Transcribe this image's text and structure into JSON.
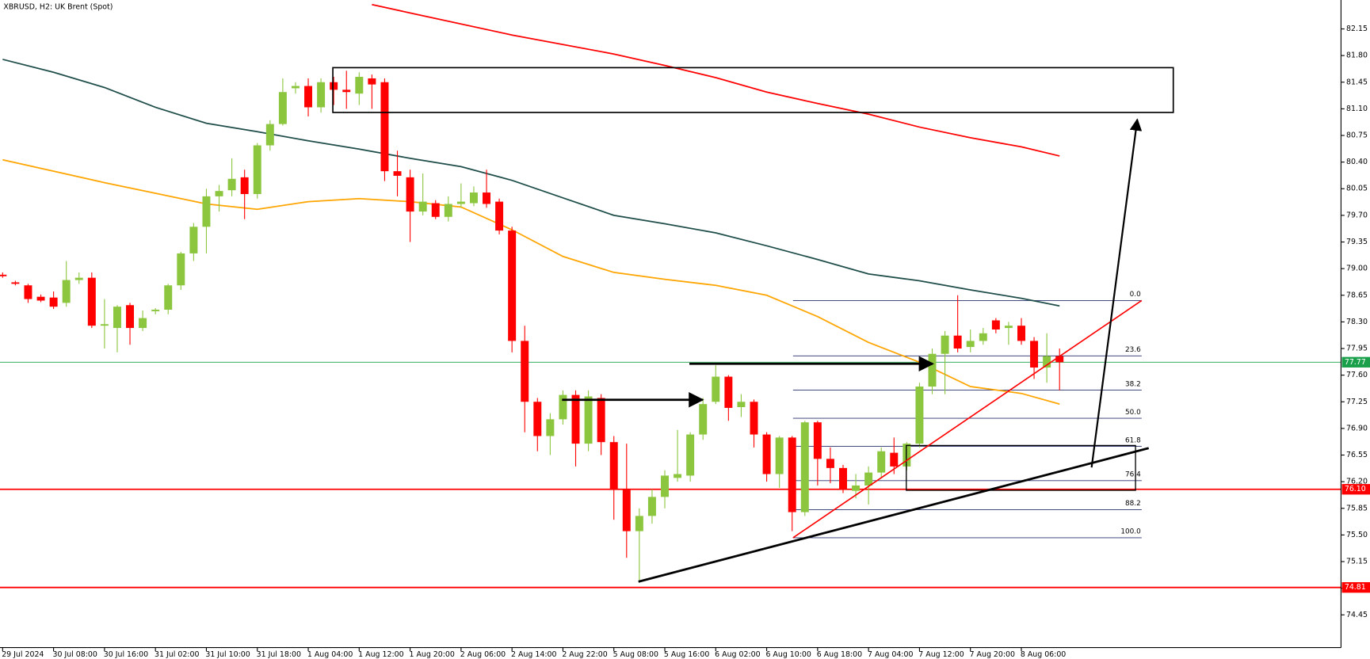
{
  "chart_data": {
    "type": "candlestick",
    "title": "XBRUSD, H2:  UK Brent (Spot)",
    "categories": [
      "29 Jul 2024",
      null,
      null,
      null,
      "30 Jul 08:00",
      null,
      null,
      null,
      "30 Jul 16:00",
      null,
      null,
      null,
      "31 Jul 02:00",
      null,
      null,
      null,
      "31 Jul 10:00",
      null,
      null,
      null,
      "31 Jul 18:00",
      null,
      null,
      null,
      "1 Aug 04:00",
      null,
      null,
      null,
      "1 Aug 12:00",
      null,
      null,
      null,
      "1 Aug 20:00",
      null,
      null,
      null,
      "2 Aug 06:00",
      null,
      null,
      null,
      "2 Aug 14:00",
      null,
      null,
      null,
      "2 Aug 22:00",
      null,
      null,
      null,
      "5 Aug 08:00",
      null,
      null,
      null,
      "5 Aug 16:00",
      null,
      null,
      null,
      "6 Aug 02:00",
      null,
      null,
      null,
      "6 Aug 10:00",
      null,
      null,
      null,
      "6 Aug 18:00",
      null,
      null,
      null,
      "7 Aug 04:00",
      null,
      null,
      null,
      "7 Aug 12:00",
      null,
      null,
      null,
      "7 Aug 20:00",
      null,
      null,
      null,
      "8 Aug 06:00",
      null,
      null,
      null
    ],
    "open": [
      78.92,
      78.82,
      78.78,
      78.63,
      78.62,
      78.55,
      78.85,
      78.88,
      78.25,
      78.22,
      78.52,
      78.22,
      78.44,
      78.46,
      78.78,
      79.2,
      79.55,
      79.95,
      80.03,
      80.2,
      79.98,
      80.62,
      80.9,
      81.37,
      81.4,
      81.12,
      81.45,
      81.35,
      81.3,
      81.5,
      81.45,
      80.28,
      80.2,
      79.75,
      79.86,
      79.68,
      79.85,
      79.86,
      80.0,
      79.88,
      79.5,
      78.05,
      77.25,
      76.8,
      77.02,
      77.34,
      76.7,
      77.3,
      76.72,
      76.1,
      75.55,
      75.75,
      76.0,
      76.25,
      76.28,
      76.82,
      77.25,
      77.58,
      77.18,
      77.25,
      76.82,
      76.3,
      76.78,
      75.8,
      76.98,
      76.5,
      76.38,
      76.08,
      76.15,
      76.32,
      76.58,
      76.4,
      76.7,
      77.45,
      77.88,
      78.12,
      77.97,
      78.05,
      78.32,
      78.22,
      78.25,
      78.05,
      77.7,
      77.85
    ],
    "high": [
      78.95,
      78.84,
      78.8,
      78.66,
      78.7,
      79.1,
      78.95,
      78.95,
      78.6,
      78.52,
      78.55,
      78.45,
      78.48,
      78.8,
      79.22,
      79.6,
      80.05,
      80.1,
      80.45,
      80.3,
      80.65,
      80.95,
      81.5,
      81.45,
      81.5,
      81.5,
      81.52,
      81.6,
      81.58,
      81.55,
      81.5,
      80.55,
      80.3,
      80.25,
      79.9,
      79.95,
      80.12,
      80.08,
      80.3,
      79.92,
      79.55,
      78.25,
      77.3,
      77.1,
      77.4,
      77.4,
      77.4,
      77.35,
      76.8,
      76.7,
      75.85,
      76.1,
      76.35,
      76.88,
      76.85,
      77.3,
      77.73,
      77.6,
      77.35,
      77.28,
      76.85,
      76.8,
      76.8,
      77.0,
      77.0,
      76.65,
      76.42,
      76.3,
      76.4,
      76.65,
      76.78,
      76.72,
      77.5,
      77.95,
      78.18,
      78.65,
      78.2,
      78.22,
      78.35,
      78.3,
      78.35,
      78.1,
      78.15,
      77.95
    ],
    "low": [
      78.88,
      78.78,
      78.55,
      78.56,
      78.47,
      78.5,
      78.8,
      78.22,
      77.95,
      77.9,
      78.0,
      78.18,
      78.4,
      78.4,
      78.72,
      79.1,
      79.2,
      79.75,
      79.95,
      79.65,
      79.92,
      80.55,
      80.88,
      81.3,
      81.0,
      81.05,
      81.15,
      81.1,
      81.15,
      81.1,
      80.15,
      79.95,
      79.35,
      79.7,
      79.65,
      79.62,
      79.8,
      79.82,
      79.8,
      79.45,
      77.9,
      76.85,
      76.6,
      76.55,
      76.95,
      76.4,
      76.6,
      76.55,
      75.7,
      75.2,
      74.9,
      75.65,
      75.85,
      76.2,
      76.2,
      76.75,
      77.22,
      77.0,
      77.05,
      76.65,
      76.2,
      76.12,
      75.55,
      75.75,
      76.15,
      76.18,
      76.05,
      75.98,
      75.9,
      76.25,
      76.3,
      76.35,
      76.65,
      77.35,
      77.35,
      77.9,
      77.9,
      78.0,
      78.15,
      78.0,
      78.0,
      77.55,
      77.5,
      77.4
    ],
    "close": [
      78.9,
      78.8,
      78.6,
      78.58,
      78.5,
      78.85,
      78.88,
      78.25,
      78.27,
      78.5,
      78.22,
      78.35,
      78.46,
      78.78,
      79.2,
      79.55,
      79.95,
      80.02,
      80.18,
      79.98,
      80.62,
      80.9,
      81.32,
      81.4,
      81.12,
      81.45,
      81.35,
      81.32,
      81.52,
      81.42,
      80.28,
      80.22,
      79.75,
      79.88,
      79.68,
      79.85,
      79.88,
      80.0,
      79.85,
      79.5,
      78.05,
      77.25,
      76.8,
      77.02,
      77.34,
      76.7,
      77.32,
      76.72,
      76.1,
      75.55,
      75.75,
      76.0,
      76.28,
      76.3,
      76.82,
      77.22,
      77.58,
      77.17,
      77.25,
      76.82,
      76.3,
      76.78,
      75.8,
      76.98,
      76.5,
      76.38,
      76.1,
      76.15,
      76.32,
      76.6,
      76.4,
      76.7,
      77.45,
      77.88,
      78.12,
      77.95,
      78.05,
      78.15,
      78.2,
      78.25,
      78.05,
      77.7,
      77.85,
      77.77
    ],
    "up_color": "#8cc63f",
    "down_color": "#ff0000",
    "moving_averages": [
      {
        "color": "#ffa500",
        "x": [
          0,
          4,
          8,
          12,
          16,
          20,
          24,
          28,
          32,
          36,
          40,
          44,
          48,
          52,
          56,
          60,
          64,
          68,
          72,
          76,
          80,
          83
        ],
        "values": [
          80.43,
          80.28,
          80.13,
          79.99,
          79.85,
          79.78,
          79.88,
          79.92,
          79.88,
          79.81,
          79.51,
          79.16,
          78.95,
          78.86,
          78.78,
          78.65,
          78.37,
          78.03,
          77.77,
          77.45,
          77.36,
          77.22
        ]
      },
      {
        "color": "#1f4e4a",
        "x": [
          0,
          4,
          8,
          12,
          16,
          20,
          24,
          28,
          32,
          36,
          40,
          44,
          48,
          52,
          56,
          60,
          64,
          68,
          72,
          76,
          80,
          83
        ],
        "values": [
          81.75,
          81.58,
          81.38,
          81.12,
          80.91,
          80.8,
          80.68,
          80.57,
          80.45,
          80.34,
          80.16,
          79.93,
          79.7,
          79.59,
          79.47,
          79.3,
          79.12,
          78.93,
          78.84,
          78.72,
          78.61,
          78.51
        ]
      },
      {
        "color": "#ff0000",
        "x": [
          29,
          32,
          40,
          48,
          52,
          56,
          60,
          64,
          68,
          72,
          76,
          80,
          83
        ],
        "values": [
          82.47,
          82.36,
          82.07,
          81.82,
          81.67,
          81.51,
          81.32,
          81.17,
          81.03,
          80.86,
          80.72,
          80.6,
          80.48
        ]
      }
    ],
    "price_lines": [
      {
        "value": 77.77,
        "label": "77.77",
        "color": "#1aa04a"
      },
      {
        "value": 76.1,
        "label": "76.10",
        "color": "#ff0000"
      },
      {
        "value": 74.81,
        "label": "74.81",
        "color": "#ff0000"
      }
    ],
    "fib_levels": [
      "0.0",
      "23.6",
      "38.2",
      "50.0",
      "61.8",
      "76.4",
      "88.2",
      "100.0"
    ],
    "ylim": [
      74.02,
      82.53
    ],
    "yticks": [
      82.15,
      {
        "value": 81.8,
        "label": "81.80"
      },
      81.45,
      {
        "value": 81.1,
        "label": "81.10"
      },
      80.75,
      {
        "value": 80.4,
        "label": "80.40"
      },
      80.05,
      {
        "value": 79.7,
        "label": "79.70"
      },
      79.35,
      {
        "value": 79.0,
        "label": "79.00"
      },
      78.65,
      {
        "value": 78.3,
        "label": "78.30"
      },
      77.95,
      {
        "value": 77.6,
        "label": "77.60"
      },
      77.25,
      {
        "value": 76.9,
        "label": "76.90"
      },
      76.55,
      {
        "value": 76.2,
        "label": "76.20"
      },
      75.85,
      {
        "value": 75.5,
        "label": "75.50"
      },
      75.15,
      {
        "value": 74.8,
        "label": "74.80"
      },
      74.45
    ],
    "grid": false
  }
}
